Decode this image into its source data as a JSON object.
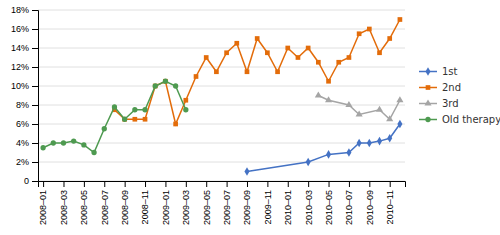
{
  "chart_data": {
    "type": "line",
    "xlim": [
      -0.5,
      35.5
    ],
    "xticks": [
      {
        "value": 0,
        "label": "2008–01"
      },
      {
        "value": 2,
        "label": "2008–03"
      },
      {
        "value": 4,
        "label": "2008–05"
      },
      {
        "value": 6,
        "label": "2008–07"
      },
      {
        "value": 8,
        "label": "2008–09"
      },
      {
        "value": 10,
        "label": "2008–11"
      },
      {
        "value": 12,
        "label": "2009–01"
      },
      {
        "value": 14,
        "label": "2009–03"
      },
      {
        "value": 16,
        "label": "2009–05"
      },
      {
        "value": 18,
        "label": "2009–07"
      },
      {
        "value": 20,
        "label": "2009–09"
      },
      {
        "value": 22,
        "label": "2009–11"
      },
      {
        "value": 24,
        "label": "2010–01"
      },
      {
        "value": 26,
        "label": "2010–03"
      },
      {
        "value": 28,
        "label": "2010–05"
      },
      {
        "value": 30,
        "label": "2010–07"
      },
      {
        "value": 32,
        "label": "2010–09"
      },
      {
        "value": 34,
        "label": "2010–11"
      }
    ],
    "ylim": [
      0,
      18
    ],
    "yticks": [
      0,
      {
        "value": 2,
        "label": "2%"
      },
      {
        "value": 4,
        "label": "4%"
      },
      {
        "value": 6,
        "label": "6%"
      },
      {
        "value": 8,
        "label": "8%"
      },
      {
        "value": 10,
        "label": "10%"
      },
      {
        "value": 12,
        "label": "12%"
      },
      {
        "value": 14,
        "label": "14%"
      },
      {
        "value": 16,
        "label": "16%"
      },
      {
        "value": 18,
        "label": "18%"
      }
    ],
    "grid": "y",
    "legend": "right",
    "series": [
      {
        "name": "1st",
        "color": "#4472C4",
        "marker": "diamond",
        "x": [
          20,
          26,
          28,
          30,
          31,
          32,
          33,
          34,
          35
        ],
        "values": [
          1.0,
          2.0,
          2.8,
          3.0,
          4.0,
          4.0,
          4.2,
          4.5,
          6.0
        ]
      },
      {
        "name": "2nd",
        "color": "#E36C0A",
        "marker": "square",
        "x": [
          7,
          8,
          9,
          10,
          11,
          12,
          13,
          14,
          15,
          16,
          17,
          18,
          19,
          20,
          21,
          22,
          23,
          24,
          25,
          26,
          27,
          28,
          29,
          30,
          31,
          32,
          33,
          34,
          35
        ],
        "values": [
          7.5,
          6.5,
          6.5,
          6.5,
          10.0,
          10.5,
          6.0,
          8.5,
          11.0,
          13.0,
          11.5,
          13.5,
          14.5,
          11.5,
          15.0,
          13.5,
          11.5,
          14.0,
          13.0,
          14.0,
          12.5,
          10.5,
          12.5,
          13.0,
          15.5,
          16.0,
          13.5,
          15.0,
          17.0
        ]
      },
      {
        "name": "3rd",
        "color": "#A5A5A5",
        "marker": "triangle",
        "x": [
          27,
          28,
          30,
          31,
          33,
          34,
          35
        ],
        "values": [
          9.0,
          8.5,
          8.0,
          7.0,
          7.5,
          6.5,
          8.5
        ]
      },
      {
        "name": "Old therapy",
        "color": "#4E9A50",
        "marker": "circle",
        "x": [
          0,
          1,
          2,
          3,
          4,
          5,
          6,
          7,
          8,
          9,
          10,
          11,
          12,
          13,
          14
        ],
        "values": [
          3.5,
          4.0,
          4.0,
          4.2,
          3.8,
          3.0,
          5.5,
          7.8,
          6.5,
          7.5,
          7.5,
          10.0,
          10.5,
          10.0,
          7.5
        ]
      }
    ]
  }
}
